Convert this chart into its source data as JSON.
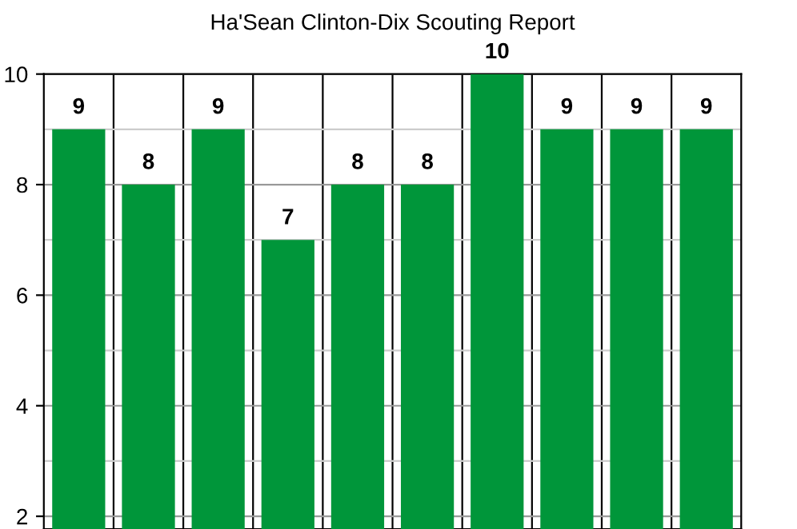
{
  "chart_data": {
    "type": "bar",
    "title": "Ha'Sean Clinton-Dix Scouting Report",
    "categories": [
      null,
      null,
      null,
      null,
      null,
      null,
      null,
      null,
      null,
      null
    ],
    "values": [
      9,
      8,
      9,
      7,
      8,
      8,
      10,
      9,
      9,
      9
    ],
    "color": "#00963a",
    "ylim": [
      1.77,
      10
    ],
    "yticks": [
      2,
      4,
      6,
      8,
      10
    ],
    "grid": true,
    "data_labels": true
  }
}
